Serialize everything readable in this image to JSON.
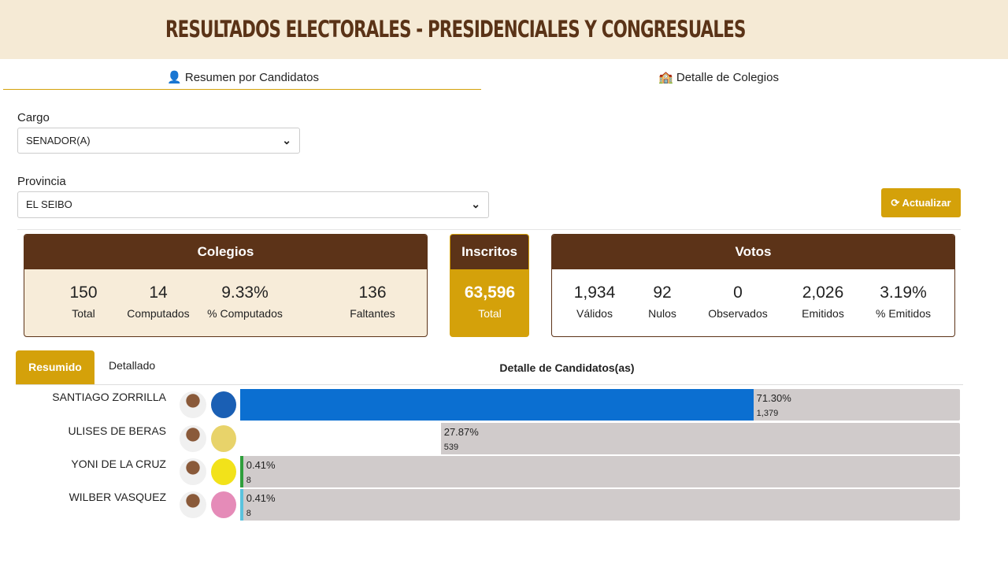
{
  "header": {
    "title": "RESULTADOS ELECTORALES - PRESIDENCIALES Y CONGRESUALES"
  },
  "tabs": [
    "Resumen por Candidatos",
    "Detalle de Colegios"
  ],
  "filters": {
    "cargo_label": "Cargo",
    "cargo_value": "SENADOR(A)",
    "provincia_label": "Provincia",
    "provincia_value": "EL SEIBO",
    "button": "Actualizar"
  },
  "colegios": {
    "title": "Colegios",
    "stats": [
      {
        "value": "150",
        "label": "Total"
      },
      {
        "value": "14",
        "label": "Computados"
      },
      {
        "value": "9.33%",
        "label": "% Computados"
      },
      {
        "value": "136",
        "label": "Faltantes"
      }
    ]
  },
  "inscritos": {
    "title": "Inscritos",
    "stats": [
      {
        "value": "63,596",
        "label": "Total"
      }
    ]
  },
  "votos": {
    "title": "Votos",
    "stats": [
      {
        "value": "1,934",
        "label": "Válidos"
      },
      {
        "value": "92",
        "label": "Nulos"
      },
      {
        "value": "0",
        "label": "Observados"
      },
      {
        "value": "2,026",
        "label": "Emitidos"
      },
      {
        "value": "3.19%",
        "label": "% Emitidos"
      }
    ]
  },
  "results_tabs": [
    "Resumido",
    "Detallado"
  ],
  "results_title": "Detalle de Candidatos(as)",
  "candidates": {
    "names": [
      "SANTIAGO ZORRILLA",
      "ULISES DE BERAS",
      "YONI DE LA CRUZ",
      "WILBER VASQUEZ"
    ],
    "values": [
      71.3,
      27.87,
      0.41,
      0.41
    ],
    "value_labels": [
      "71.30%",
      "27.87%",
      "0.41%",
      "0.41%"
    ],
    "votes": [
      "1,379",
      "539",
      "8",
      "8"
    ],
    "colors": [
      "#0b6fd1",
      "#ffffff",
      "#2f9e3c",
      "#5bc2dd"
    ],
    "xlim": [
      0,
      100
    ]
  }
}
